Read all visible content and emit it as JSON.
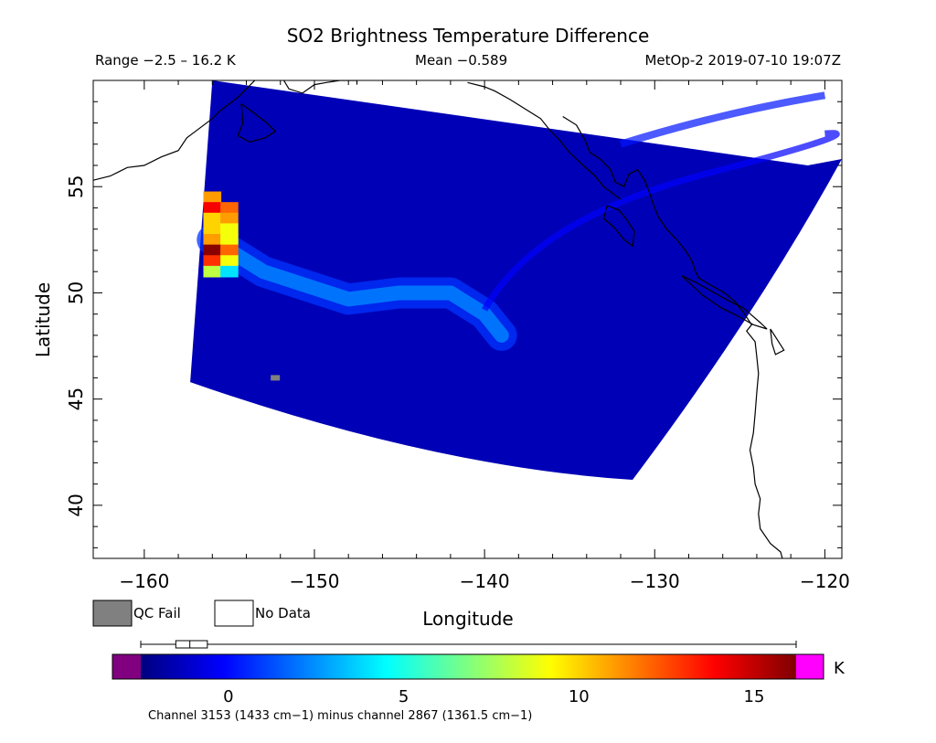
{
  "header": {
    "title": "SO2 Brightness Temperature Difference",
    "range": "Range −2.5 – 16.2 K",
    "mean": "Mean −0.589",
    "satellite": "MetOp-2 2019-07-10 19:07Z"
  },
  "legend": {
    "qc_fail_label": "QC Fail",
    "no_data_label": "No Data",
    "qc_fail_color": "#808080",
    "no_data_color": "#ffffff"
  },
  "colorbar": {
    "unit": "K",
    "ticks": [
      "0",
      "5",
      "10",
      "15"
    ],
    "tick_values": [
      0,
      5,
      10,
      15
    ],
    "range": [
      -2.5,
      16.2
    ],
    "under_color": "#800080",
    "over_color": "#ff00ff",
    "caption": "Channel 3153 (1433 cm−1) minus channel 2867 (1361.5 cm−1)",
    "box_plot": {
      "min": -2.5,
      "q1": -1.5,
      "median": -1.1,
      "q3": -0.6,
      "max": 16.2
    }
  },
  "chart_data": {
    "type": "heatmap",
    "title": "SO2 Brightness Temperature Difference",
    "xlabel": "Longitude",
    "ylabel": "Latitude",
    "xlim": [
      -163,
      -119
    ],
    "ylim": [
      37.5,
      60
    ],
    "x_ticks": [
      -160,
      -150,
      -140,
      -130,
      -120
    ],
    "y_ticks": [
      40,
      45,
      50,
      55
    ],
    "x_tick_labels": [
      "−160",
      "−150",
      "−140",
      "−130",
      "−120"
    ],
    "y_tick_labels": [
      "40",
      "45",
      "50",
      "55"
    ],
    "background_value": -1.5,
    "swath_corners": [
      [
        -156,
        60
      ],
      [
        -121,
        56
      ],
      [
        -131.3,
        41.2
      ],
      [
        -157.3,
        45.8
      ]
    ],
    "plume_axis": [
      [
        -156,
        52.5
      ],
      [
        -153,
        51
      ],
      [
        -148,
        49.7
      ],
      [
        -145,
        50
      ],
      [
        -142,
        50
      ],
      [
        -140,
        49
      ],
      [
        -139,
        48
      ]
    ],
    "hotspot": [
      {
        "lon": -156,
        "lat": 54.5,
        "value": 11
      },
      {
        "lon": -156,
        "lat": 54.0,
        "value": 14
      },
      {
        "lon": -155,
        "lat": 54.0,
        "value": 12
      },
      {
        "lon": -156,
        "lat": 53.5,
        "value": 10
      },
      {
        "lon": -155,
        "lat": 53.5,
        "value": 11
      },
      {
        "lon": -156,
        "lat": 53.0,
        "value": 10
      },
      {
        "lon": -155,
        "lat": 53.0,
        "value": 9
      },
      {
        "lon": -156,
        "lat": 52.5,
        "value": 11
      },
      {
        "lon": -155,
        "lat": 52.5,
        "value": 9
      },
      {
        "lon": -156,
        "lat": 52.0,
        "value": 16
      },
      {
        "lon": -155,
        "lat": 52.0,
        "value": 12
      },
      {
        "lon": -156,
        "lat": 51.5,
        "value": 13
      },
      {
        "lon": -155,
        "lat": 51.5,
        "value": 9
      },
      {
        "lon": -156,
        "lat": 51.0,
        "value": 8
      },
      {
        "lon": -155,
        "lat": 51.0,
        "value": 4
      }
    ],
    "qc_fail_pixel": {
      "lon": -152.3,
      "lat": 46
    }
  }
}
